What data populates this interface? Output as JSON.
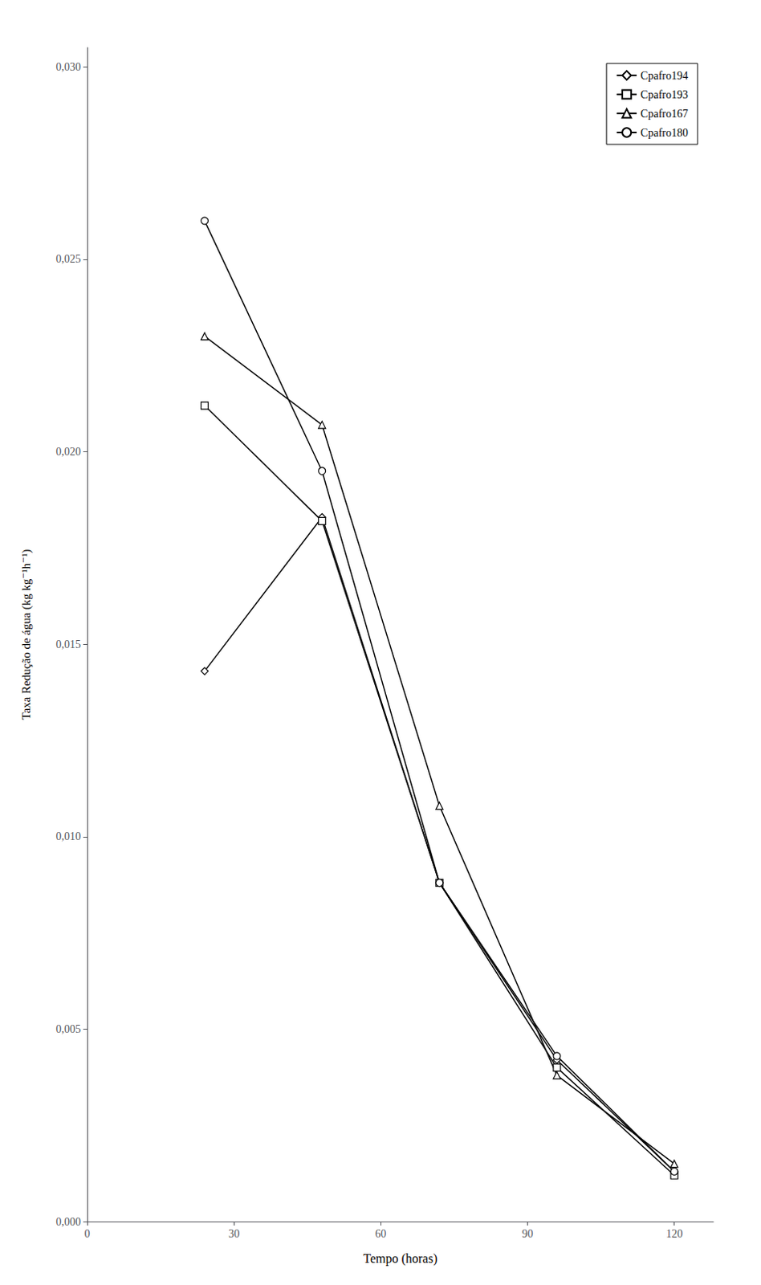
{
  "chart_data": {
    "type": "line",
    "xlabel": "Tempo (horas)",
    "ylabel": "Taxa Redução de água (kg kg⁻¹h⁻¹)",
    "x": [
      24,
      48,
      72,
      96,
      120
    ],
    "series": [
      {
        "name": "Cpafro194",
        "color": "#000000",
        "marker": "diamond",
        "values": [
          0.0143,
          0.0183,
          0.0088,
          0.0042,
          0.0013
        ]
      },
      {
        "name": "Cpafro193",
        "color": "#000000",
        "marker": "square",
        "values": [
          0.0212,
          0.0182,
          0.0088,
          0.004,
          0.0012
        ]
      },
      {
        "name": "Cpafro167",
        "color": "#000000",
        "marker": "triangle",
        "values": [
          0.023,
          0.0207,
          0.0108,
          0.0038,
          0.0015
        ]
      },
      {
        "name": "Cpafro180",
        "color": "#000000",
        "marker": "circle",
        "values": [
          0.026,
          0.0195,
          0.0088,
          0.0043,
          0.0013
        ]
      }
    ],
    "xlim": [
      0,
      128
    ],
    "xticks": [
      0,
      30,
      60,
      90,
      120
    ],
    "ylim": [
      0.0,
      0.0305
    ],
    "yticks": [
      {
        "value": 0.0,
        "label": "0,000"
      },
      {
        "value": 0.005,
        "label": "0,005"
      },
      {
        "value": 0.01,
        "label": "0,010"
      },
      {
        "value": 0.015,
        "label": "0,015"
      },
      {
        "value": 0.02,
        "label": "0,020"
      },
      {
        "value": 0.025,
        "label": "0,025"
      },
      {
        "value": 0.03,
        "label": "0,030"
      }
    ],
    "legend": "upper right",
    "grid": false
  }
}
